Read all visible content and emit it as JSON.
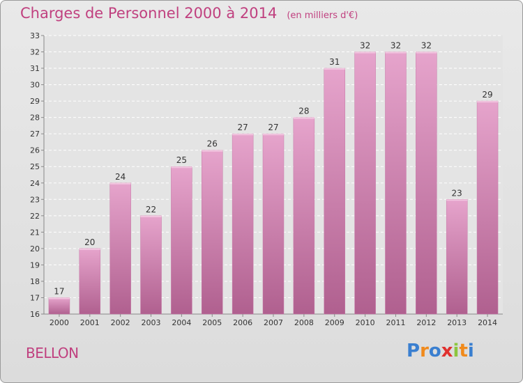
{
  "header": {
    "title": "Charges de Personnel 2000 à 2014",
    "subtitle": "(en milliers d'€)"
  },
  "footer": {
    "place": "BELLON",
    "logo_letters": [
      "P",
      "r",
      "o",
      "x",
      "i",
      "t",
      "i"
    ],
    "logo_colors": [
      "#3a7fd0",
      "#f08a1c",
      "#3a7fd0",
      "#e0312f",
      "#8cc63f",
      "#f08a1c",
      "#3a7fd0"
    ]
  },
  "chart_data": {
    "type": "bar",
    "title": "Charges de Personnel 2000 à 2014",
    "subtitle": "(en milliers d'€)",
    "categories": [
      "2000",
      "2001",
      "2002",
      "2003",
      "2004",
      "2005",
      "2006",
      "2007",
      "2008",
      "2009",
      "2010",
      "2011",
      "2012",
      "2013",
      "2014"
    ],
    "values": [
      17,
      20,
      24,
      22,
      25,
      26,
      27,
      27,
      28,
      31,
      32,
      32,
      32,
      23,
      29
    ],
    "ylim": [
      16,
      33
    ],
    "yticks": [
      16,
      17,
      18,
      19,
      20,
      21,
      22,
      23,
      24,
      25,
      26,
      27,
      28,
      29,
      30,
      31,
      32,
      33
    ],
    "grid": true,
    "bar_color": "#c96fa5"
  }
}
